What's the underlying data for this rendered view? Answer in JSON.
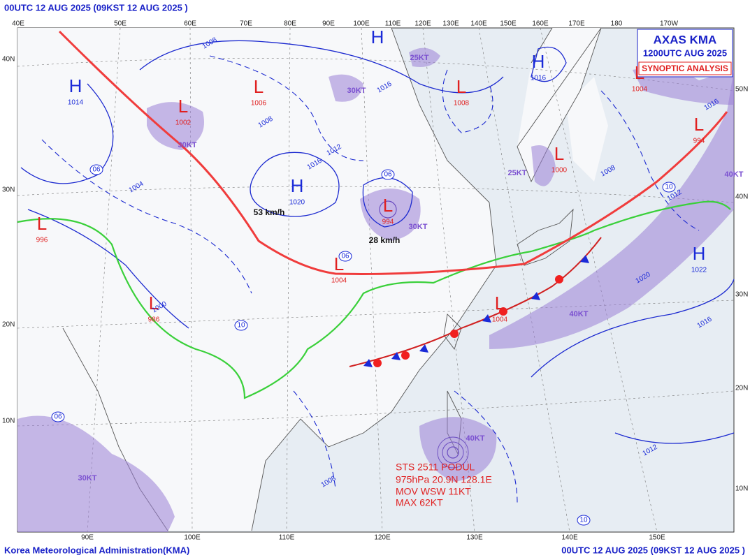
{
  "header": {
    "title": "00UTC 12 AUG 2025 (09KST 12 AUG 2025 )"
  },
  "legend": {
    "line1": "AXAS KMA",
    "line2": "1200UTC AUG 2025",
    "line3": "SYNOPTIC ANALYSIS"
  },
  "footer": {
    "left": "Korea Meteorological Administration(KMA)",
    "right": "00UTC 12 AUG 2025 (09KST 12 AUG 2025 )"
  },
  "top_longitudes": [
    "40E",
    "50E",
    "60E",
    "70E",
    "80E",
    "90E",
    "100E",
    "110E",
    "120E",
    "130E",
    "140E",
    "150E",
    "160E",
    "170E",
    "180",
    "170W"
  ],
  "bottom_longitudes": [
    "90E",
    "100E",
    "110E",
    "120E",
    "130E",
    "140E",
    "150E"
  ],
  "left_latitudes": [
    "40N",
    "30N",
    "20N",
    "10N"
  ],
  "right_latitudes": [
    "50N",
    "40N",
    "30N",
    "20N",
    "10N"
  ],
  "high_centers": [
    {
      "label": "H",
      "pressure": 1014
    },
    {
      "label": "H"
    },
    {
      "label": "H",
      "pressure": 1020
    },
    {
      "label": "H",
      "pressure": 1016
    },
    {
      "label": "H",
      "pressure": 1022
    }
  ],
  "low_centers": [
    {
      "label": "L",
      "pressure": 996
    },
    {
      "label": "L",
      "pressure": 986
    },
    {
      "label": "L",
      "pressure": 1006
    },
    {
      "label": "L",
      "pressure": 1002
    },
    {
      "label": "L",
      "pressure": 1004
    },
    {
      "label": "L",
      "pressure": 1008
    },
    {
      "label": "L",
      "pressure": 1000
    },
    {
      "label": "L",
      "pressure": 1004
    },
    {
      "label": "L",
      "pressure": 994
    },
    {
      "label": "L",
      "pressure": 1004
    },
    {
      "label": "L",
      "pressure": 994
    }
  ],
  "wind_labels": [
    "30KT",
    "25KT",
    "30KT",
    "25KT",
    "30KT",
    "40KT",
    "40KT",
    "40KT",
    "30KT",
    "53 km/h",
    "28 km/h"
  ],
  "isobar_labels": [
    1008,
    1016,
    1016,
    1012,
    1008,
    1004,
    1000,
    1012,
    1016,
    1008,
    1012,
    1020,
    1008,
    1016
  ],
  "circled_labels": [
    "06",
    "06",
    "06",
    "06",
    "10",
    "10",
    "10"
  ],
  "typhoon": {
    "name": "STS 2511 PODUL",
    "position": "975hPa 20.9N 128.1E",
    "movement": "MOV WSW 11KT",
    "max_wind": "MAX 62KT"
  }
}
